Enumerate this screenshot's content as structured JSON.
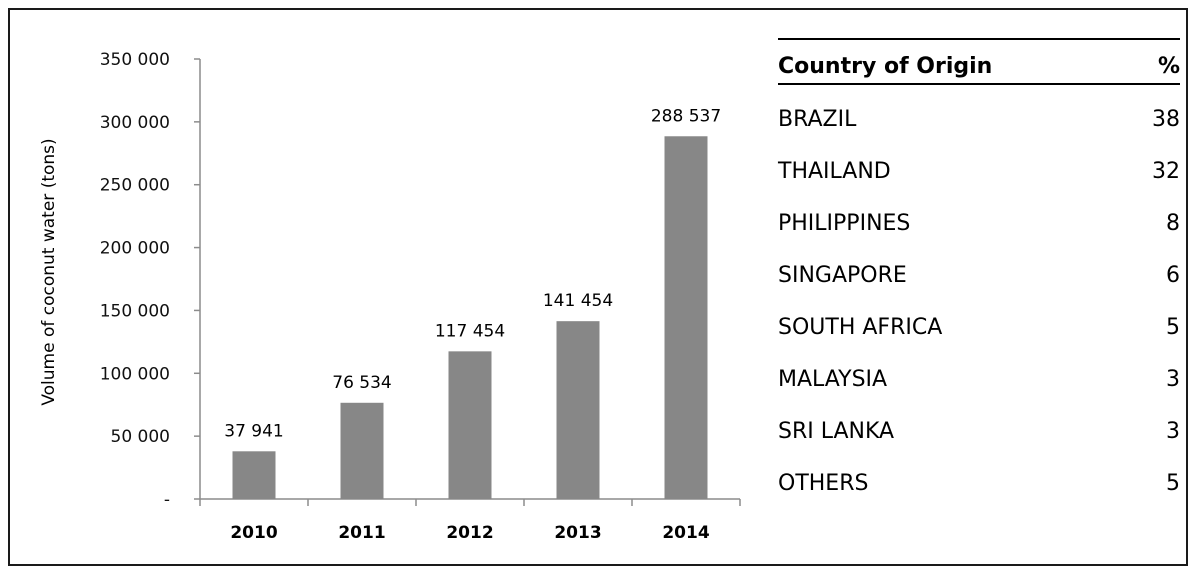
{
  "chart_data": {
    "type": "bar",
    "categories": [
      "2010",
      "2011",
      "2012",
      "2013",
      "2014"
    ],
    "values": [
      37941,
      76534,
      117454,
      141454,
      288537
    ],
    "value_labels": [
      "37 941",
      "76 534",
      "117 454",
      "141 454",
      "288 537"
    ],
    "ylabel": "Volume of coconut water (tons)",
    "ylim": [
      0,
      350000
    ],
    "y_ticks": [
      0,
      50000,
      100000,
      150000,
      200000,
      250000,
      300000,
      350000
    ],
    "y_tick_labels": [
      "-",
      "50 000",
      "100 000",
      "150 000",
      "200 000",
      "250 000",
      "300 000",
      "350 000"
    ],
    "bar_color": "#878787",
    "grid": false
  },
  "table": {
    "header": {
      "country": "Country of Origin",
      "pct": "%"
    },
    "rows": [
      {
        "country": "BRAZIL",
        "pct": "38"
      },
      {
        "country": "THAILAND",
        "pct": "32"
      },
      {
        "country": "PHILIPPINES",
        "pct": "8"
      },
      {
        "country": "SINGAPORE",
        "pct": "6"
      },
      {
        "country": "SOUTH AFRICA",
        "pct": "5"
      },
      {
        "country": "MALAYSIA",
        "pct": "3"
      },
      {
        "country": "SRI LANKA",
        "pct": "3"
      },
      {
        "country": "OTHERS",
        "pct": "5"
      }
    ]
  }
}
